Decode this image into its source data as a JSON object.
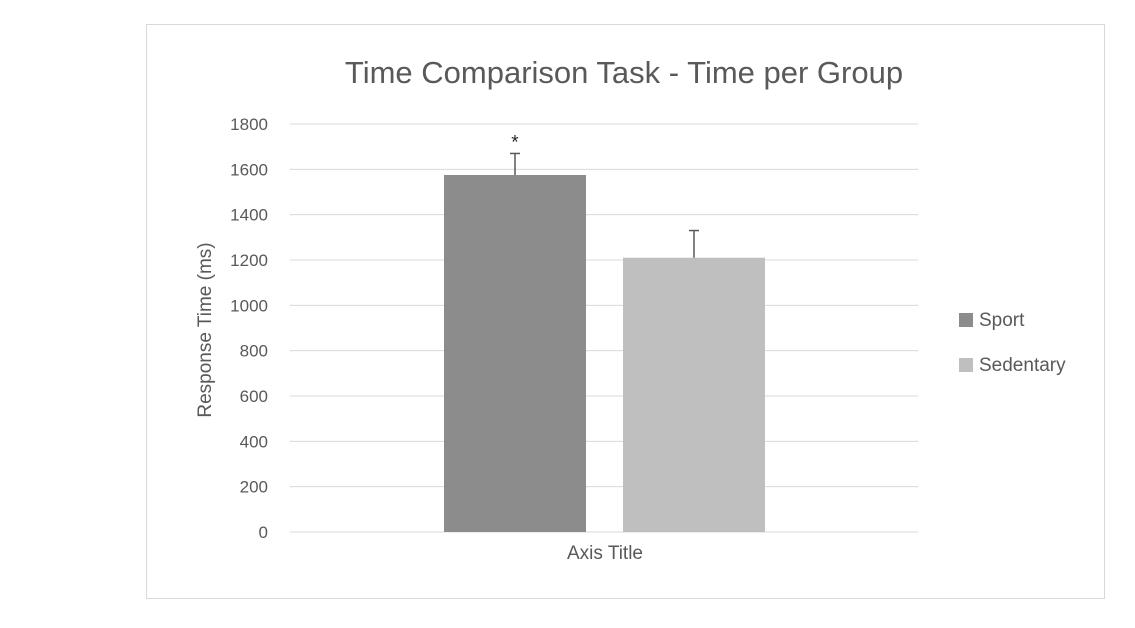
{
  "chart_data": {
    "type": "bar",
    "title": "Time Comparison Task - Time per Group",
    "xlabel": "Axis Title",
    "ylabel": "Response Time (ms)",
    "ylim": [
      0,
      1800
    ],
    "y_ticks": [
      "0",
      "200",
      "400",
      "600",
      "800",
      "1000",
      "1200",
      "1400",
      "1600",
      "1800"
    ],
    "grid": true,
    "legend_position": "right",
    "series": [
      {
        "name": "Sport",
        "value": 1575,
        "error": 95,
        "color": "#8c8c8c",
        "annotation": "*"
      },
      {
        "name": "Sedentary",
        "value": 1210,
        "error": 120,
        "color": "#bfbfbf",
        "annotation": ""
      }
    ]
  }
}
